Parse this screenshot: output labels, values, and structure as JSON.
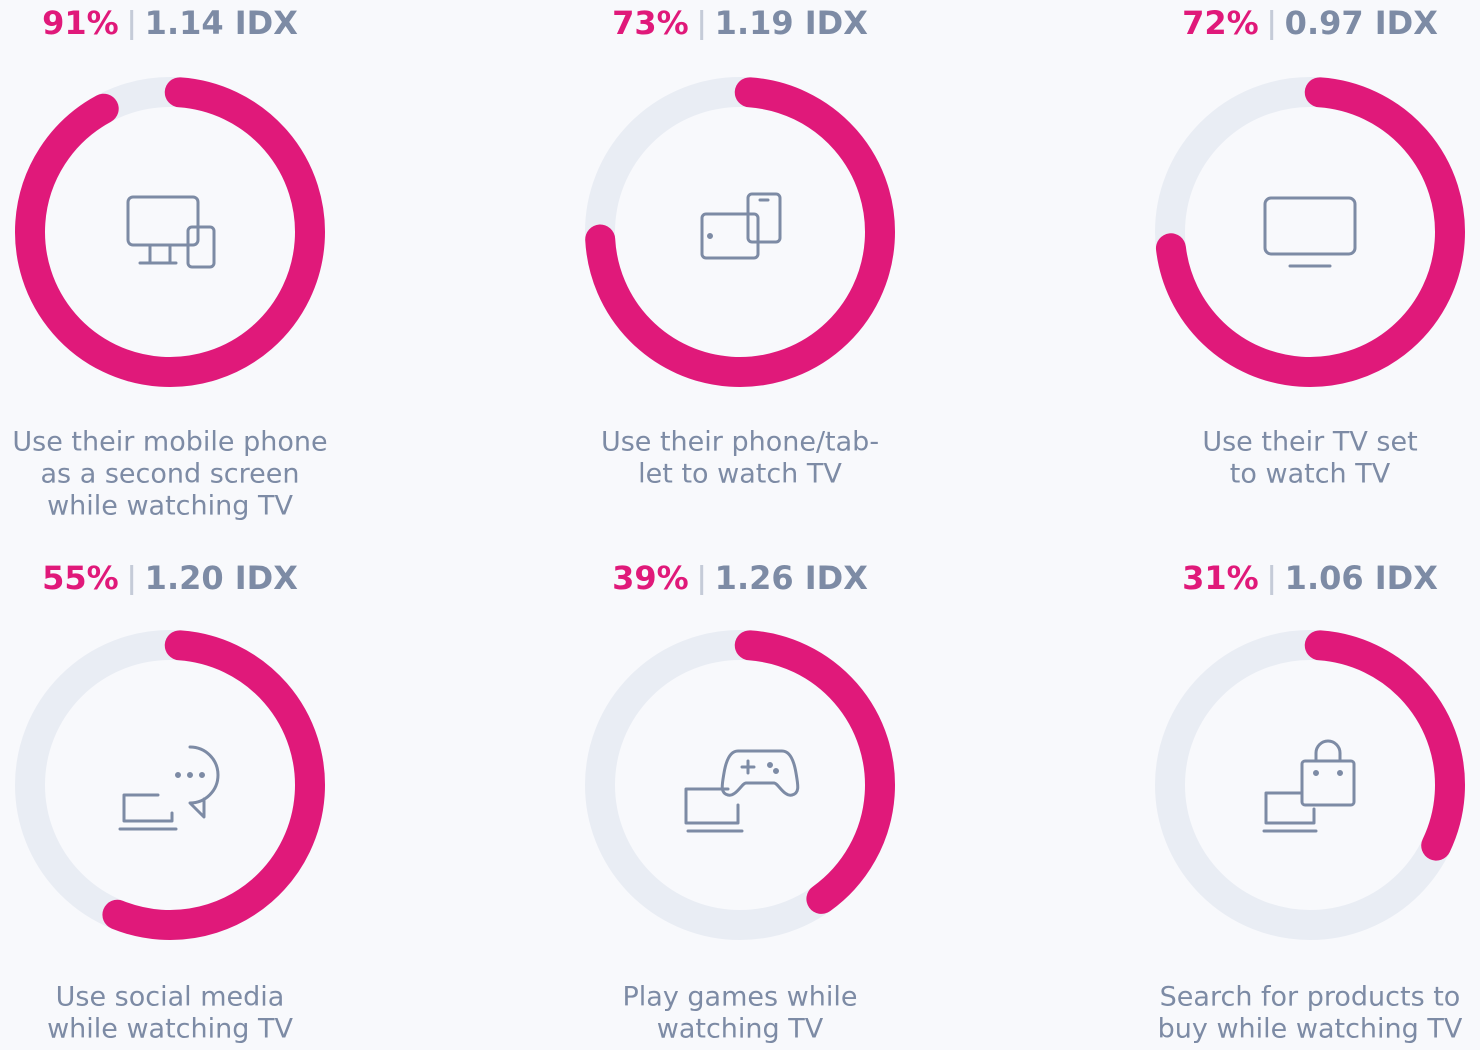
{
  "chart_data": [
    {
      "type": "donut",
      "values": [
        91
      ],
      "value_labels": [
        "91%"
      ],
      "index_label": "1.14 IDX",
      "label_lines": [
        "Use their mobile phone",
        "as a second screen",
        "while watching TV"
      ],
      "ylim": [
        0,
        100
      ],
      "color": "#e0197a",
      "track_color": "#e9edf4"
    },
    {
      "type": "donut",
      "values": [
        73
      ],
      "value_labels": [
        "73%"
      ],
      "index_label": "1.19 IDX",
      "label_lines": [
        "Use their phone/tab-",
        "let to watch TV"
      ],
      "ylim": [
        0,
        100
      ],
      "color": "#e0197a",
      "track_color": "#e9edf4"
    },
    {
      "type": "donut",
      "values": [
        72
      ],
      "value_labels": [
        "72%"
      ],
      "index_label": "0.97 IDX",
      "label_lines": [
        "Use their TV set",
        "to watch TV"
      ],
      "ylim": [
        0,
        100
      ],
      "color": "#e0197a",
      "track_color": "#e9edf4"
    },
    {
      "type": "donut",
      "values": [
        55
      ],
      "value_labels": [
        "55%"
      ],
      "index_label": "1.20 IDX",
      "label_lines": [
        "Use social media",
        "while watching TV"
      ],
      "ylim": [
        0,
        100
      ],
      "color": "#e0197a",
      "track_color": "#e9edf4"
    },
    {
      "type": "donut",
      "values": [
        39
      ],
      "value_labels": [
        "39%"
      ],
      "index_label": "1.26 IDX",
      "label_lines": [
        "Play games while",
        "watching TV"
      ],
      "ylim": [
        0,
        100
      ],
      "color": "#e0197a",
      "track_color": "#e9edf4"
    },
    {
      "type": "donut",
      "values": [
        31
      ],
      "value_labels": [
        "31%"
      ],
      "index_label": "1.06 IDX",
      "label_lines": [
        "Search for products to",
        "buy while watching TV"
      ],
      "ylim": [
        0,
        100
      ],
      "color": "#e0197a",
      "track_color": "#e9edf4"
    }
  ]
}
